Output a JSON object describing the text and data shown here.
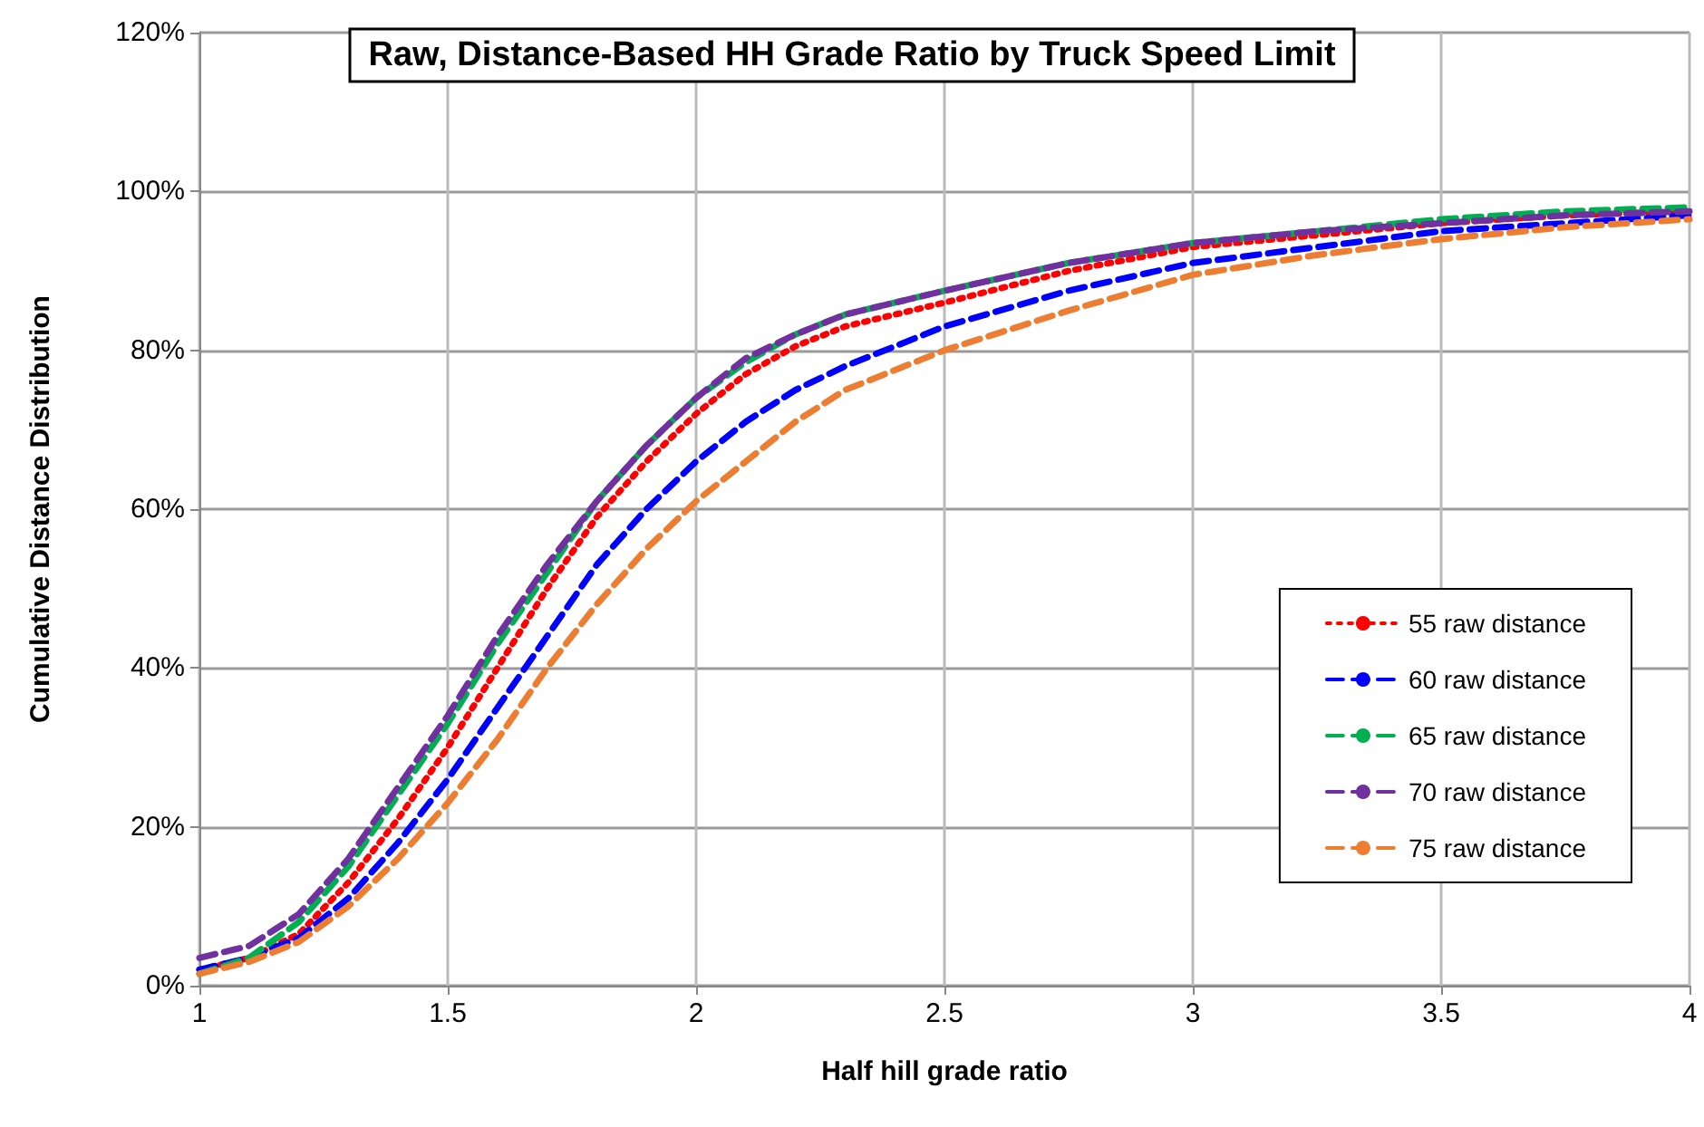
{
  "chart_data": {
    "type": "line",
    "title": "Raw, Distance-Based HH Grade Ratio by Truck Speed Limit",
    "xlabel": "Half hill grade ratio",
    "ylabel": "Cumulative Distance Distribution",
    "x": [
      1,
      1.1,
      1.2,
      1.3,
      1.4,
      1.5,
      1.6,
      1.7,
      1.8,
      1.9,
      2,
      2.1,
      2.2,
      2.3,
      2.5,
      2.75,
      3,
      3.25,
      3.5,
      3.75,
      4
    ],
    "series": [
      {
        "name": "55 raw distance",
        "color": "#ff0000",
        "line_style": "dotted",
        "values": [
          2,
          3.5,
          6.5,
          13,
          21,
          30,
          40,
          50,
          59,
          66,
          72,
          77,
          80.5,
          83,
          86,
          90,
          93,
          94.5,
          96,
          97,
          97.5
        ]
      },
      {
        "name": "60 raw distance",
        "color": "#0000ff",
        "line_style": "dashed",
        "values": [
          2,
          3.5,
          6,
          11,
          18,
          26,
          35,
          44,
          53,
          60,
          66,
          71,
          75,
          78,
          83,
          87.5,
          91,
          93,
          95,
          96,
          97
        ]
      },
      {
        "name": "65 raw distance",
        "color": "#00b050",
        "line_style": "dashed",
        "values": [
          1.5,
          3.5,
          8,
          15,
          24,
          33,
          43,
          52,
          61,
          68,
          74,
          78.5,
          82,
          84.5,
          87.5,
          91,
          93.5,
          95,
          96.5,
          97.5,
          98
        ]
      },
      {
        "name": "70 raw distance",
        "color": "#7030a0",
        "line_style": "dashed",
        "values": [
          3.5,
          5,
          9,
          16,
          25,
          34,
          44,
          53,
          61,
          68,
          74,
          79,
          82,
          84.5,
          87.5,
          91,
          93.5,
          95,
          96,
          97,
          97.5
        ]
      },
      {
        "name": "75 raw distance",
        "color": "#ed7d31",
        "line_style": "dashed",
        "values": [
          1.5,
          3,
          5.5,
          10,
          16,
          23,
          31,
          40,
          48,
          55,
          61,
          66,
          71,
          75,
          80,
          85,
          89.5,
          92,
          94,
          95.5,
          96.5
        ]
      }
    ],
    "xlim": [
      1,
      4
    ],
    "xticks": [
      1,
      1.5,
      2,
      2.5,
      3,
      3.5,
      4
    ],
    "ylim": [
      0,
      120
    ],
    "yticks": [
      {
        "value": 0,
        "label": "0%"
      },
      {
        "value": 20,
        "label": "20%"
      },
      {
        "value": 40,
        "label": "40%"
      },
      {
        "value": 60,
        "label": "60%"
      },
      {
        "value": 80,
        "label": "80%"
      },
      {
        "value": 100,
        "label": "100%"
      },
      {
        "value": 120,
        "label": "120%"
      }
    ],
    "grid": true,
    "legend": "bottom right",
    "marker": "none"
  }
}
